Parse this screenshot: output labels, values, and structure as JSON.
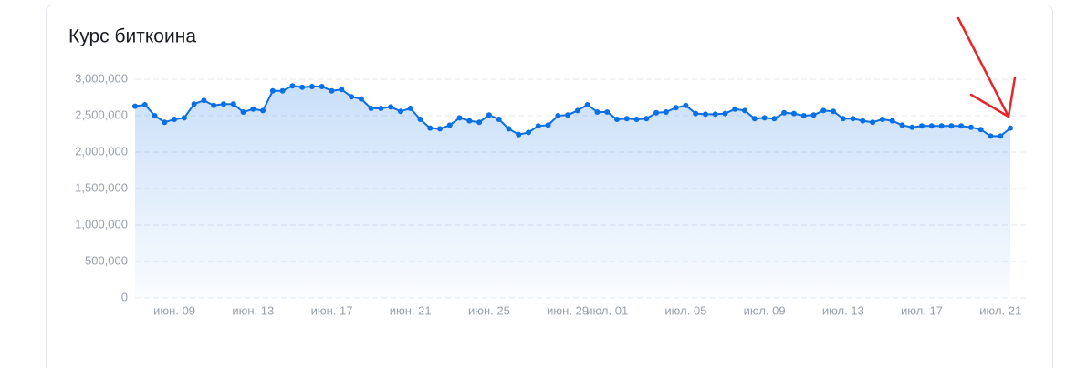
{
  "chart_data": {
    "type": "line",
    "title": "Курс биткоина",
    "categories": [
      null,
      null,
      null,
      null,
      "июн. 09",
      null,
      null,
      null,
      null,
      null,
      null,
      null,
      "июн. 13",
      null,
      null,
      null,
      null,
      null,
      null,
      null,
      "июн. 17",
      null,
      null,
      null,
      null,
      null,
      null,
      null,
      "июн. 21",
      null,
      null,
      null,
      null,
      null,
      null,
      null,
      "июн. 25",
      null,
      null,
      null,
      null,
      null,
      null,
      null,
      "июн. 29",
      null,
      null,
      null,
      "июл. 01",
      null,
      null,
      null,
      null,
      null,
      null,
      null,
      "июл. 05",
      null,
      null,
      null,
      null,
      null,
      null,
      null,
      "июл. 09",
      null,
      null,
      null,
      null,
      null,
      null,
      null,
      "июл. 13",
      null,
      null,
      null,
      null,
      null,
      null,
      null,
      "июл. 17",
      null,
      null,
      null,
      null,
      null,
      null,
      null,
      "июл. 21",
      null
    ],
    "values": [
      2630000,
      2650000,
      2500000,
      2410000,
      2450000,
      2470000,
      2660000,
      2710000,
      2640000,
      2660000,
      2660000,
      2550000,
      2590000,
      2570000,
      2840000,
      2840000,
      2910000,
      2890000,
      2900000,
      2900000,
      2840000,
      2860000,
      2760000,
      2730000,
      2600000,
      2600000,
      2620000,
      2560000,
      2600000,
      2450000,
      2330000,
      2320000,
      2370000,
      2470000,
      2430000,
      2410000,
      2510000,
      2450000,
      2320000,
      2240000,
      2270000,
      2360000,
      2370000,
      2500000,
      2510000,
      2570000,
      2650000,
      2550000,
      2550000,
      2450000,
      2460000,
      2450000,
      2460000,
      2540000,
      2550000,
      2610000,
      2640000,
      2530000,
      2520000,
      2520000,
      2530000,
      2590000,
      2570000,
      2460000,
      2470000,
      2460000,
      2540000,
      2530000,
      2500000,
      2510000,
      2570000,
      2560000,
      2460000,
      2460000,
      2430000,
      2410000,
      2450000,
      2430000,
      2370000,
      2340000,
      2360000,
      2360000,
      2360000,
      2360000,
      2360000,
      2340000,
      2310000,
      2220000,
      2220000,
      2330000
    ],
    "color": "#0b6fe4",
    "ylim": [
      0,
      3000000
    ],
    "yticks": [
      0,
      {
        "value": 500000,
        "label": "500,000"
      },
      {
        "value": 1000000,
        "label": "1,000,000"
      },
      {
        "value": 1500000,
        "label": "1,500,000"
      },
      {
        "value": 2000000,
        "label": "2,000,000"
      },
      {
        "value": 2500000,
        "label": "2,500,000"
      },
      {
        "value": 3000000,
        "label": "3,000,000"
      }
    ],
    "grid": true
  }
}
